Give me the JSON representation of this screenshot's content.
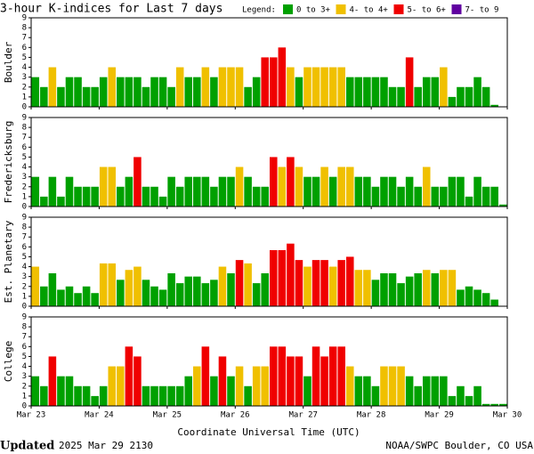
{
  "title": "3-hour K-indices for Last 7 days",
  "legend": {
    "label": "Legend:",
    "items": [
      {
        "name": "0 to 3+",
        "color": "#00a000"
      },
      {
        "name": "4- to 4+",
        "color": "#f0c000"
      },
      {
        "name": "5- to 6+",
        "color": "#f00000"
      },
      {
        "name": "7- to 9",
        "color": "#6000a0"
      }
    ]
  },
  "x_labels": [
    "Mar 23",
    "Mar 24",
    "Mar 25",
    "Mar 26",
    "Mar 27",
    "Mar 28",
    "Mar 29",
    "Mar 30"
  ],
  "xlabel": "Coordinate Universal Time (UTC)",
  "footer": {
    "updated": "Updated",
    "time": "2025 Mar 29 2130",
    "source": "NOAA/SWPC Boulder, CO USA"
  },
  "chart_data": [
    {
      "type": "bar",
      "ylabel": "Boulder",
      "ylim": [
        0,
        9
      ],
      "yticks": [
        0,
        1,
        2,
        3,
        4,
        5,
        6,
        7,
        8,
        9
      ],
      "values": [
        3,
        2,
        4,
        2,
        3,
        3,
        2,
        2,
        3,
        4,
        3,
        3,
        3,
        2,
        3,
        3,
        2,
        4,
        3,
        3,
        4,
        3,
        4,
        4,
        4,
        2,
        3,
        5,
        5,
        6,
        4,
        3,
        4,
        4,
        4,
        4,
        4,
        3,
        3,
        3,
        3,
        3,
        2,
        2,
        5,
        2,
        3,
        3,
        4,
        1,
        2,
        2,
        3,
        2,
        0.2,
        0
      ]
    },
    {
      "type": "bar",
      "ylabel": "Fredericksburg",
      "ylim": [
        0,
        9
      ],
      "yticks": [
        0,
        1,
        2,
        3,
        4,
        5,
        6,
        7,
        8,
        9
      ],
      "values": [
        3,
        1,
        3,
        1,
        3,
        2,
        2,
        2,
        4,
        4,
        2,
        3,
        5,
        2,
        2,
        1,
        3,
        2,
        3,
        3,
        3,
        2,
        3,
        3,
        4,
        3,
        2,
        2,
        5,
        4,
        5,
        4,
        3,
        3,
        4,
        3,
        4,
        4,
        3,
        3,
        2,
        3,
        3,
        2,
        3,
        2,
        4,
        2,
        2,
        3,
        3,
        1,
        3,
        2,
        2,
        0.2
      ]
    },
    {
      "type": "bar",
      "ylabel": "Est. Planetary",
      "ylim": [
        0,
        9
      ],
      "yticks": [
        0,
        1,
        2,
        3,
        4,
        5,
        6,
        7,
        8,
        9
      ],
      "values": [
        4,
        2,
        3.33,
        1.67,
        2,
        1.33,
        2,
        1.33,
        4.33,
        4.33,
        2.67,
        3.67,
        4,
        2.67,
        2,
        1.67,
        3.33,
        2.33,
        3,
        3,
        2.33,
        2.67,
        4,
        3.33,
        4.67,
        4.33,
        2.33,
        3.33,
        5.67,
        5.67,
        6.33,
        4.67,
        4,
        4.67,
        4.67,
        4,
        4.67,
        5,
        3.67,
        3.67,
        2.67,
        3.33,
        3.33,
        2.33,
        3,
        3.33,
        3.67,
        3.33,
        3.67,
        3.67,
        1.67,
        2,
        1.67,
        1.33,
        0.67,
        0
      ]
    },
    {
      "type": "bar",
      "ylabel": "College",
      "ylim": [
        0,
        9
      ],
      "yticks": [
        0,
        1,
        2,
        3,
        4,
        5,
        6,
        7,
        8,
        9
      ],
      "values": [
        3,
        2,
        5,
        3,
        3,
        2,
        2,
        1,
        2,
        4,
        4,
        6,
        5,
        2,
        2,
        2,
        2,
        2,
        3,
        4,
        6,
        3,
        5,
        3,
        4,
        2,
        4,
        4,
        6,
        6,
        5,
        5,
        3,
        6,
        5,
        6,
        6,
        4,
        3,
        3,
        2,
        4,
        4,
        4,
        3,
        2,
        3,
        3,
        3,
        1,
        2,
        1,
        2,
        0.2,
        0.2,
        0.2
      ]
    }
  ]
}
